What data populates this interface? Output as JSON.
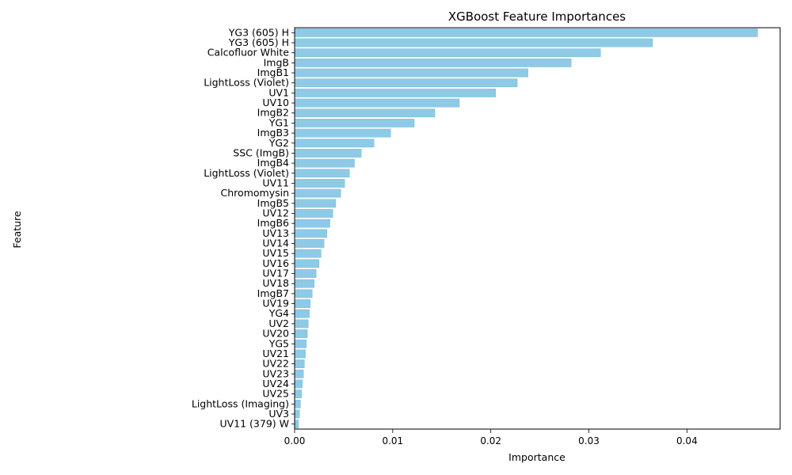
{
  "chart_data": {
    "type": "bar",
    "orientation": "horizontal",
    "title": "XGBoost Feature Importances",
    "xlabel": "Importance",
    "ylabel": "Feature",
    "xlim": [
      0,
      0.0495
    ],
    "xticks": [
      "0.00",
      "0.01",
      "0.02",
      "0.03",
      "0.04"
    ],
    "xtick_values": [
      0,
      0.01,
      0.02,
      0.03,
      0.04
    ],
    "grid": false,
    "legend": "none",
    "bar_color": "#8ecae6",
    "categories": [
      "YG3 (605) H",
      "YG3 (605) H",
      "Calcofluor White",
      "ImgB",
      "ImgB1",
      "LightLoss (Violet)",
      "UV1",
      "UV10",
      "ImgB2",
      "YG1",
      "ImgB3",
      "YG2",
      "SSC (ImgB)",
      "ImgB4",
      "LightLoss (Violet)",
      "UV11",
      "Chromomysin",
      "ImgB5",
      "UV12",
      "ImgB6",
      "UV13",
      "UV14",
      "UV15",
      "UV16",
      "UV17",
      "UV18",
      "ImgB7",
      "UV19",
      "YG4",
      "UV2",
      "UV20",
      "YG5",
      "UV21",
      "UV22",
      "UV23",
      "UV24",
      "UV25",
      "LightLoss (Imaging)",
      "UV3",
      "UV11 (379) W"
    ],
    "values": [
      0.0472,
      0.0365,
      0.0312,
      0.0282,
      0.0238,
      0.0227,
      0.0205,
      0.0168,
      0.0143,
      0.0122,
      0.0098,
      0.0081,
      0.0068,
      0.0061,
      0.0056,
      0.0051,
      0.0047,
      0.0042,
      0.0039,
      0.0036,
      0.0033,
      0.003,
      0.0027,
      0.0025,
      0.0022,
      0.002,
      0.0018,
      0.0016,
      0.0015,
      0.0014,
      0.0013,
      0.0012,
      0.0011,
      0.001,
      0.0009,
      0.0008,
      0.0007,
      0.0006,
      0.0005,
      0.0004
    ]
  }
}
